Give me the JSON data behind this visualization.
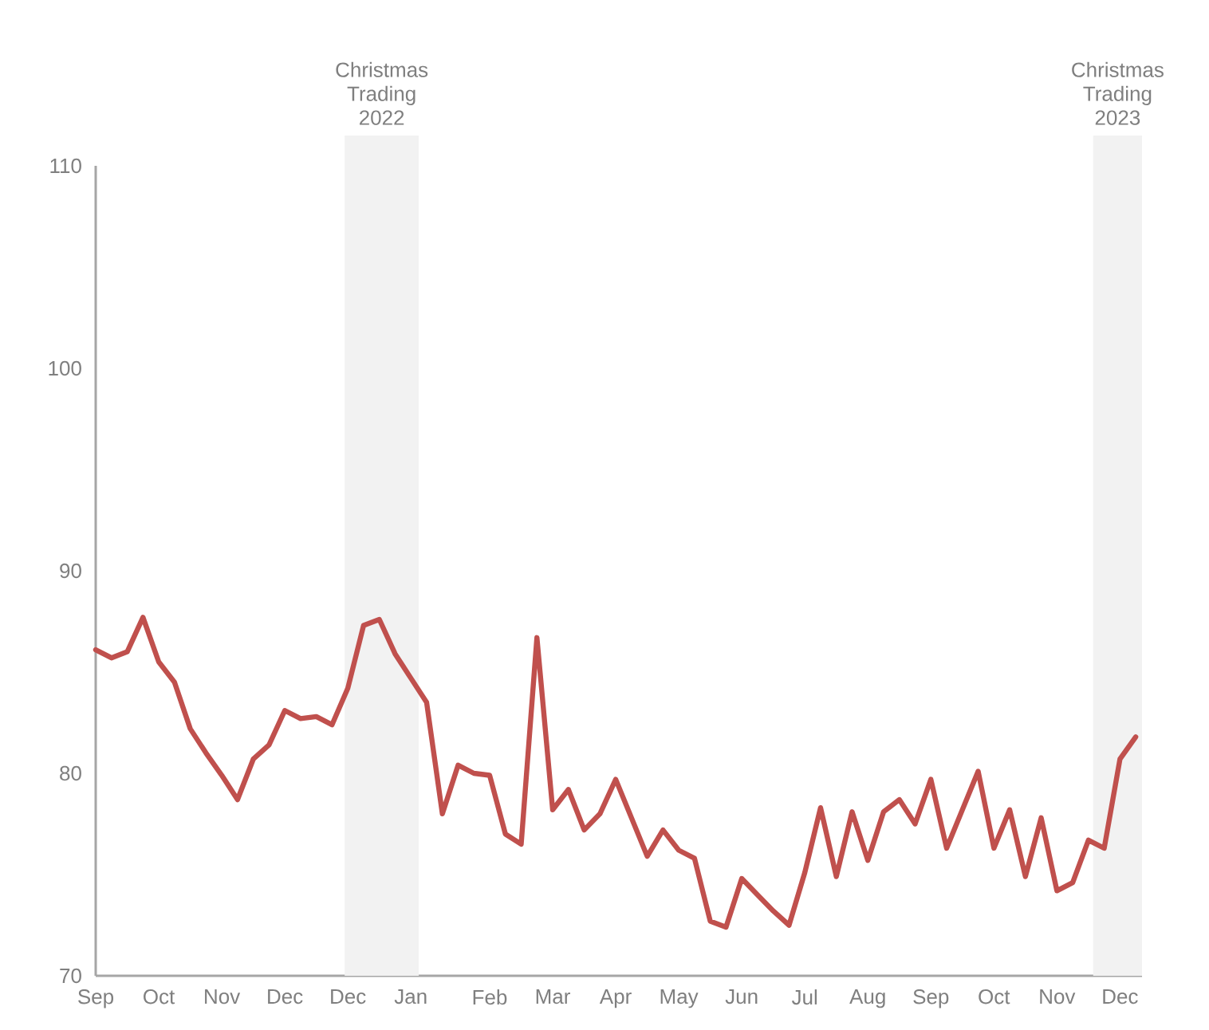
{
  "chart_data": {
    "type": "line",
    "categories": [
      "Sep",
      null,
      null,
      null,
      "Oct",
      null,
      null,
      null,
      "Nov",
      null,
      null,
      null,
      "Dec",
      null,
      null,
      null,
      "Dec",
      null,
      null,
      null,
      "Jan",
      null,
      null,
      null,
      null,
      "Feb",
      null,
      null,
      null,
      "Mar",
      null,
      null,
      null,
      "Apr",
      null,
      null,
      null,
      "May",
      null,
      null,
      null,
      "Jun",
      null,
      null,
      null,
      "Jul",
      null,
      null,
      null,
      "Aug",
      null,
      null,
      null,
      "Sep",
      null,
      null,
      null,
      "Oct",
      null,
      null,
      null,
      "Nov",
      null,
      null,
      null,
      "Dec",
      null
    ],
    "series": [
      {
        "color": "#c0504d",
        "values": [
          86.1,
          85.7,
          86.0,
          87.7,
          85.5,
          84.5,
          82.2,
          81.0,
          79.9,
          78.7,
          80.7,
          81.4,
          83.1,
          82.7,
          82.8,
          82.4,
          84.2,
          87.3,
          87.6,
          85.9,
          84.7,
          83.5,
          78.0,
          80.4,
          80.0,
          79.9,
          77.0,
          76.5,
          86.7,
          78.2,
          79.2,
          77.2,
          78.0,
          79.7,
          77.8,
          75.9,
          77.2,
          76.2,
          75.8,
          72.7,
          72.4,
          74.8,
          74.0,
          73.2,
          72.5,
          75.1,
          78.3,
          74.9,
          78.1,
          75.7,
          78.1,
          78.7,
          77.5,
          79.7,
          76.3,
          78.2,
          80.1,
          76.3,
          78.2,
          74.9,
          77.8,
          74.2,
          74.6,
          76.7,
          76.3,
          80.7,
          81.8
        ]
      }
    ],
    "ylim": [
      70,
      110
    ],
    "yticks": [
      70,
      80,
      90,
      100,
      110
    ],
    "annotations": [
      "Christmas Trading 2022",
      "Christmas Trading 2023"
    ],
    "marker": "none",
    "line_style": "solid"
  }
}
